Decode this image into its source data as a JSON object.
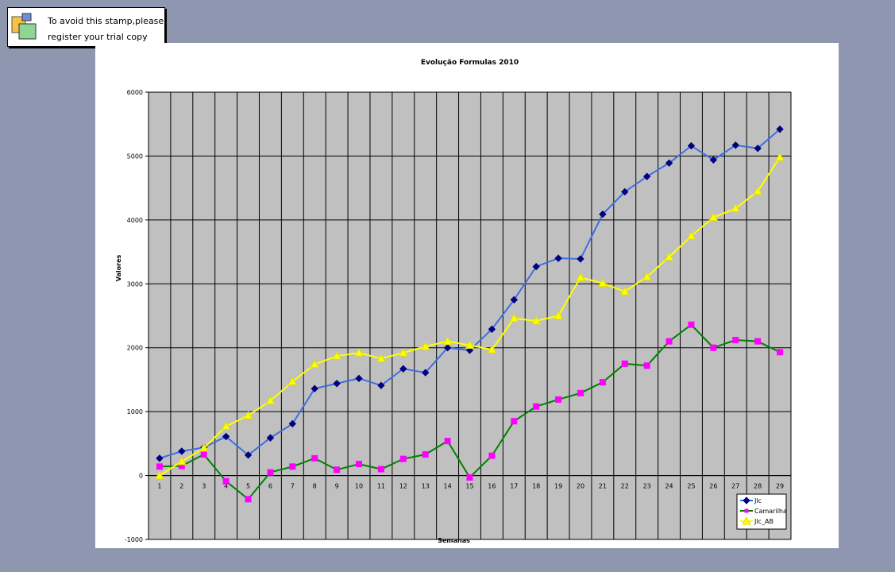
{
  "stamp": {
    "line1": "To avoid this stamp,please",
    "line2": "register your trial copy",
    "icon": "windows-stack-icon"
  },
  "chart_data": {
    "type": "line",
    "title": "Evolução Formulas 2010",
    "xlabel": "Semanas",
    "ylabel": "Valores",
    "ylim": [
      -1000,
      6000
    ],
    "yticks": [
      -1000,
      0,
      1000,
      2000,
      3000,
      4000,
      5000,
      6000
    ],
    "grid": true,
    "plot_background": "#c0c0c0",
    "legend_position": "bottom-right",
    "categories": [
      "1",
      "2",
      "3",
      "4",
      "5",
      "6",
      "7",
      "8",
      "9",
      "10",
      "11",
      "12",
      "13",
      "14",
      "15",
      "16",
      "17",
      "18",
      "19",
      "20",
      "21",
      "22",
      "23",
      "24",
      "25",
      "26",
      "27",
      "28",
      "29"
    ],
    "series": [
      {
        "name": "Jlc",
        "line_color": "#3d6fe0",
        "marker_color": "#000080",
        "marker": "diamond",
        "values": [
          270,
          380,
          440,
          610,
          320,
          590,
          810,
          1360,
          1440,
          1520,
          1410,
          1670,
          1610,
          2000,
          1960,
          2290,
          2750,
          3270,
          3400,
          3390,
          4090,
          4440,
          4680,
          4890,
          5160,
          4940,
          5170,
          5120,
          5420
        ]
      },
      {
        "name": "Camarilha",
        "line_color": "#008000",
        "marker_color": "#ff00ff",
        "marker": "square",
        "values": [
          140,
          150,
          330,
          -90,
          -370,
          50,
          140,
          270,
          90,
          180,
          100,
          260,
          330,
          540,
          -30,
          310,
          850,
          1080,
          1190,
          1290,
          1460,
          1750,
          1720,
          2100,
          2360,
          2000,
          2120,
          2100,
          1930
        ]
      },
      {
        "name": "Jlc_AB",
        "line_color": "#ffff00",
        "marker_color": "#ffff00",
        "marker": "triangle",
        "values": [
          0,
          220,
          430,
          770,
          940,
          1170,
          1470,
          1740,
          1870,
          1920,
          1830,
          1920,
          2020,
          2100,
          2040,
          1970,
          2460,
          2420,
          2500,
          3100,
          3010,
          2880,
          3110,
          3420,
          3750,
          4040,
          4180,
          4450,
          4980
        ]
      }
    ]
  }
}
